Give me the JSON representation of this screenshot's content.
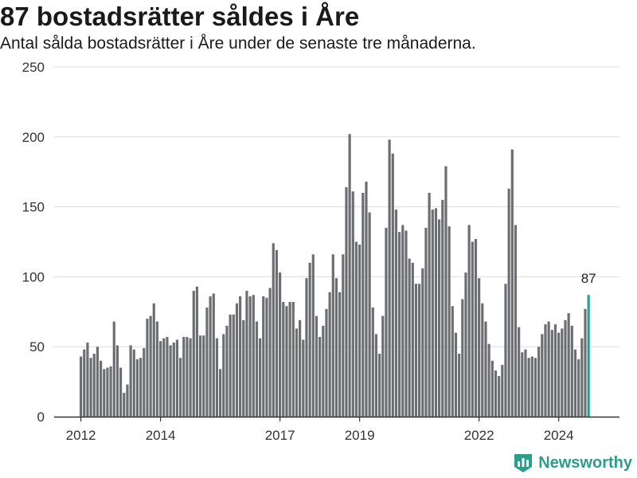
{
  "title": "87 bostadsrätter såldes i Åre",
  "subtitle": "Antal sålda bostadsrätter i Åre under de senaste tre månaderna.",
  "brand": "Newsworthy",
  "colors": {
    "bar": "#6d6e71",
    "highlight": "#26a28f",
    "grid": "#dddddd",
    "axis": "#333333"
  },
  "chart_data": {
    "type": "bar",
    "title": "87 bostadsrätter såldes i Åre",
    "subtitle": "Antal sålda bostadsrätter i Åre under de senaste tre månaderna.",
    "xlabel": "",
    "ylabel": "",
    "ylim": [
      0,
      250
    ],
    "yticks": [
      0,
      50,
      100,
      150,
      200,
      250
    ],
    "grid": true,
    "x_start": "2012-01",
    "x_interval": "month",
    "xticks": [
      "2012",
      "2014",
      "2017",
      "2019",
      "2022",
      "2024"
    ],
    "highlight_label": "87",
    "values": [
      43,
      48,
      53,
      42,
      45,
      50,
      40,
      34,
      35,
      36,
      68,
      51,
      35,
      17,
      23,
      51,
      48,
      41,
      42,
      49,
      70,
      72,
      81,
      68,
      54,
      56,
      57,
      51,
      53,
      55,
      42,
      57,
      57,
      56,
      90,
      93,
      58,
      58,
      78,
      86,
      88,
      56,
      34,
      59,
      65,
      73,
      73,
      81,
      86,
      69,
      90,
      86,
      87,
      68,
      56,
      86,
      85,
      92,
      124,
      119,
      103,
      82,
      79,
      82,
      82,
      63,
      69,
      55,
      99,
      110,
      116,
      72,
      57,
      65,
      77,
      89,
      116,
      99,
      89,
      116,
      164,
      202,
      161,
      125,
      123,
      160,
      168,
      146,
      78,
      59,
      45,
      72,
      135,
      198,
      188,
      148,
      132,
      137,
      133,
      113,
      110,
      95,
      95,
      106,
      135,
      160,
      148,
      149,
      141,
      155,
      179,
      136,
      79,
      60,
      45,
      84,
      103,
      137,
      125,
      127,
      99,
      81,
      68,
      52,
      40,
      33,
      29,
      37,
      95,
      163,
      191,
      137,
      64,
      46,
      48,
      42,
      43,
      42,
      50,
      59,
      66,
      68,
      62,
      66,
      60,
      63,
      69,
      74,
      65,
      48,
      41,
      56,
      77,
      87
    ]
  }
}
